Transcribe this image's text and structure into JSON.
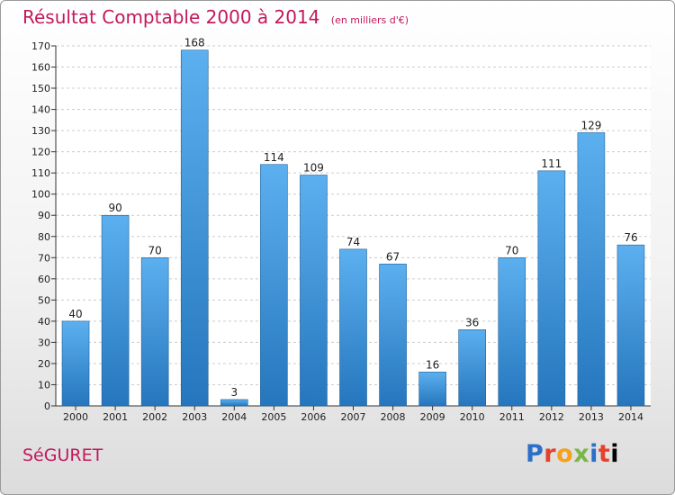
{
  "chart_data": {
    "type": "bar",
    "title": "Résultat Comptable 2000 à 2014",
    "subtitle": "(en milliers d'€)",
    "categories": [
      "2000",
      "2001",
      "2002",
      "2003",
      "2004",
      "2005",
      "2006",
      "2007",
      "2008",
      "2009",
      "2010",
      "2011",
      "2012",
      "2013",
      "2014"
    ],
    "values": [
      40,
      90,
      70,
      168,
      3,
      114,
      109,
      74,
      67,
      16,
      36,
      70,
      111,
      129,
      76
    ],
    "ylim": [
      0,
      170
    ],
    "yticks": [
      0,
      10,
      20,
      30,
      40,
      50,
      60,
      70,
      80,
      90,
      100,
      110,
      120,
      130,
      140,
      150,
      160,
      170
    ],
    "grid": true,
    "bar_color": "#3a8fd6"
  },
  "footer": {
    "town": "SéGURET",
    "brand_letters": [
      "P",
      "r",
      "o",
      "x",
      "i",
      "t",
      "i"
    ]
  }
}
